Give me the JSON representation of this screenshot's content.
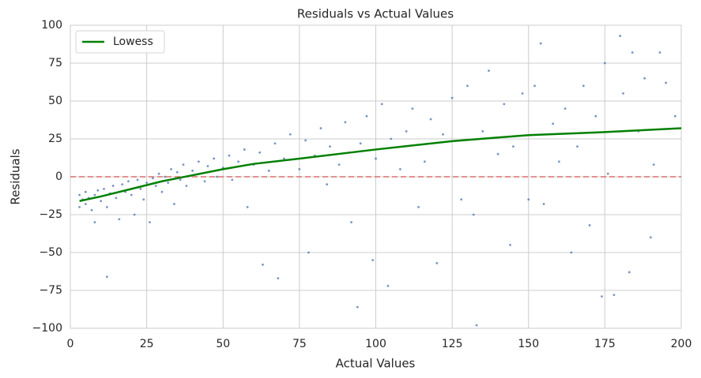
{
  "chart_data": {
    "type": "scatter",
    "title": "Residuals vs Actual Values",
    "xlabel": "Actual Values",
    "ylabel": "Residuals",
    "xlim": [
      0,
      200
    ],
    "ylim": [
      -100,
      100
    ],
    "xticks": [
      0,
      25,
      50,
      75,
      100,
      125,
      150,
      175,
      200
    ],
    "yticks": [
      {
        "value": -100,
        "label": "−100"
      },
      {
        "value": -75,
        "label": "−75"
      },
      {
        "value": -50,
        "label": "−50"
      },
      {
        "value": -25,
        "label": "−25"
      },
      0,
      25,
      50,
      75,
      100
    ],
    "grid": true,
    "legend": "upper left",
    "reference_line": {
      "y": 0,
      "color": "#d9534f"
    },
    "series": [
      {
        "type": "scatter",
        "color": "#4c72b0",
        "x": [
          3,
          3,
          4,
          5,
          5,
          6,
          7,
          8,
          8,
          9,
          10,
          11,
          12,
          12,
          13,
          14,
          15,
          16,
          17,
          18,
          19,
          20,
          21,
          22,
          23,
          24,
          25,
          26,
          27,
          28,
          29,
          30,
          31,
          32,
          33,
          34,
          35,
          36,
          37,
          38,
          40,
          42,
          44,
          45,
          47,
          48,
          50,
          52,
          53,
          55,
          57,
          58,
          60,
          62,
          63,
          65,
          67,
          68,
          70,
          72,
          75,
          77,
          78,
          80,
          82,
          84,
          85,
          88,
          90,
          92,
          94,
          95,
          97,
          99,
          100,
          102,
          104,
          105,
          108,
          110,
          112,
          114,
          116,
          118,
          120,
          122,
          125,
          128,
          130,
          132,
          133,
          135,
          137,
          140,
          142,
          144,
          145,
          148,
          150,
          152,
          154,
          155,
          158,
          160,
          162,
          164,
          166,
          168,
          170,
          172,
          174,
          175,
          176,
          178,
          180,
          181,
          183,
          184,
          186,
          188,
          190,
          191,
          193,
          195,
          198
        ],
        "values": [
          -12,
          -20,
          -15,
          -18,
          -10,
          -14,
          -22,
          -12,
          -30,
          -9,
          -16,
          -8,
          -20,
          -66,
          -11,
          -6,
          -14,
          -28,
          -5,
          -10,
          -3,
          -12,
          -25,
          -2,
          -8,
          -15,
          -4,
          -30,
          -1,
          -6,
          2,
          -10,
          0,
          -4,
          5,
          -18,
          3,
          -2,
          8,
          -6,
          4,
          10,
          -3,
          7,
          12,
          0,
          6,
          14,
          -2,
          10,
          18,
          -20,
          8,
          16,
          -58,
          4,
          22,
          -67,
          12,
          28,
          5,
          24,
          -50,
          14,
          32,
          -5,
          20,
          8,
          36,
          -30,
          -86,
          22,
          40,
          -55,
          12,
          48,
          -72,
          25,
          5,
          30,
          45,
          -20,
          10,
          38,
          -57,
          28,
          52,
          -15,
          60,
          -25,
          -98,
          30,
          70,
          15,
          48,
          -45,
          20,
          55,
          -15,
          60,
          88,
          -18,
          35,
          10,
          45,
          -50,
          20,
          60,
          -32,
          40,
          -79,
          75,
          2,
          -78,
          93,
          55,
          -63,
          82,
          30,
          65,
          -40,
          8,
          82,
          62,
          40
        ]
      },
      {
        "name": "Lowess",
        "type": "line",
        "color": "#008000",
        "x": [
          3,
          10,
          20,
          30,
          40,
          50,
          60,
          75,
          100,
          125,
          150,
          175,
          200
        ],
        "values": [
          -16,
          -13,
          -8,
          -3,
          1,
          5,
          8.5,
          12,
          18,
          23.5,
          27.5,
          29.5,
          32
        ]
      }
    ]
  }
}
